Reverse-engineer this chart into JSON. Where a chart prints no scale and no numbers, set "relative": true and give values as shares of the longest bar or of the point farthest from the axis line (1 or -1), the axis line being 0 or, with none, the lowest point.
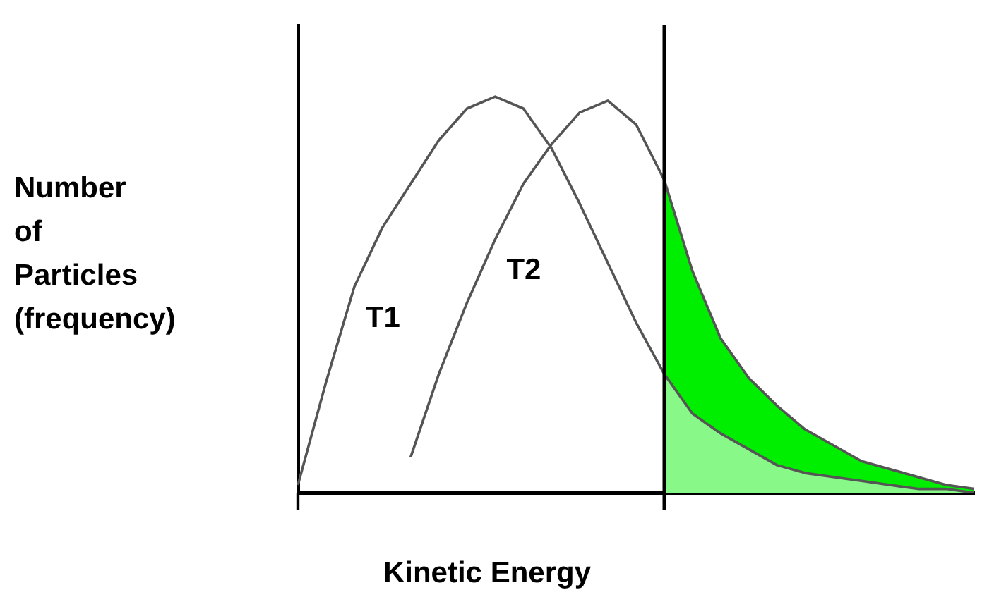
{
  "chart_data": {
    "type": "line",
    "relative": true,
    "xlabel": "Kinetic Energy",
    "ylabel": "Number\nof\nParticles\n(frequency)",
    "categories": [
      null,
      null,
      null,
      null,
      null,
      null,
      null,
      null,
      null,
      null,
      null,
      null,
      null,
      null,
      null,
      null,
      null,
      null,
      null,
      null,
      null,
      null,
      null,
      null,
      null
    ],
    "legend": false,
    "marker": "none",
    "series": [
      {
        "type": "area",
        "color": "#00ee00",
        "values": [
          null,
          null,
          null,
          null,
          null,
          null,
          null,
          null,
          null,
          null,
          null,
          null,
          null,
          0.79,
          0.56,
          0.39,
          0.29,
          0.22,
          0.16,
          0.12,
          0.08,
          0.06,
          0.04,
          0.02,
          0.01
        ]
      },
      {
        "type": "area",
        "color": "#88f888",
        "values": [
          null,
          null,
          null,
          null,
          null,
          null,
          null,
          null,
          null,
          null,
          null,
          null,
          null,
          0.3,
          0.2,
          0.15,
          0.11,
          0.07,
          0.05,
          0.04,
          0.03,
          0.02,
          0.01,
          0.01,
          0
        ]
      },
      {
        "name": "T1",
        "color": "#555555",
        "values": [
          0.02,
          0.28,
          0.52,
          0.67,
          0.78,
          0.89,
          0.97,
          1,
          0.97,
          0.87,
          0.73,
          0.58,
          0.43,
          0.3,
          0.2,
          0.15,
          0.11,
          0.07,
          0.05,
          0.04,
          0.03,
          0.02,
          0.01,
          0.01,
          0
        ]
      },
      {
        "name": "T2",
        "color": "#555555",
        "values": [
          null,
          null,
          null,
          null,
          0.09,
          0.3,
          0.48,
          0.64,
          0.78,
          0.88,
          0.96,
          0.99,
          0.93,
          0.79,
          0.56,
          0.39,
          0.29,
          0.22,
          0.16,
          0.12,
          0.08,
          0.06,
          0.04,
          0.02,
          0.01
        ]
      }
    ]
  }
}
